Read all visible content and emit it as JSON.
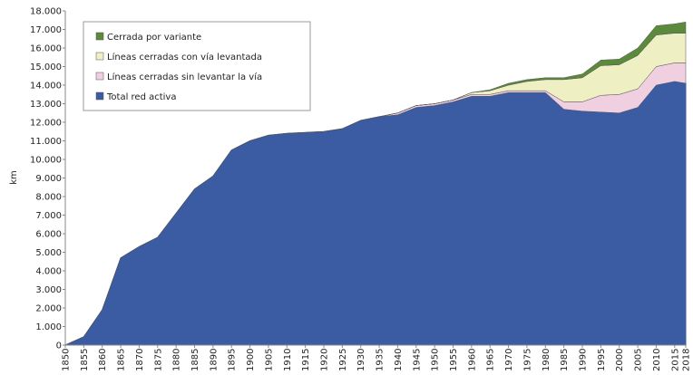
{
  "chart_data": {
    "type": "stacked_area",
    "y_label": "km",
    "x": [
      1850,
      1855,
      1860,
      1865,
      1870,
      1875,
      1880,
      1885,
      1890,
      1895,
      1900,
      1905,
      1910,
      1915,
      1920,
      1925,
      1930,
      1935,
      1940,
      1945,
      1950,
      1955,
      1960,
      1965,
      1970,
      1975,
      1980,
      1985,
      1990,
      1995,
      2000,
      2005,
      2010,
      2015,
      2018
    ],
    "xlim": [
      1850,
      2018
    ],
    "xticks": [
      1850,
      1855,
      1860,
      1865,
      1870,
      1875,
      1880,
      1885,
      1890,
      1895,
      1900,
      1905,
      1910,
      1915,
      1920,
      1925,
      1930,
      1935,
      1940,
      1945,
      1950,
      1955,
      1960,
      1965,
      1970,
      1975,
      1980,
      1985,
      1990,
      1995,
      2000,
      2005,
      2010,
      2015,
      2018
    ],
    "ylim": [
      0,
      18000
    ],
    "yticks": [
      0,
      {
        "value": 1000,
        "label": "1.000"
      },
      {
        "value": 2000,
        "label": "2.000"
      },
      {
        "value": 3000,
        "label": "3.000"
      },
      {
        "value": 4000,
        "label": "4.000"
      },
      {
        "value": 5000,
        "label": "5.000"
      },
      {
        "value": 6000,
        "label": "6.000"
      },
      {
        "value": 7000,
        "label": "7.000"
      },
      {
        "value": 8000,
        "label": "8.000"
      },
      {
        "value": 9000,
        "label": "9.000"
      },
      {
        "value": 10000,
        "label": "10.000"
      },
      {
        "value": 11000,
        "label": "11.000"
      },
      {
        "value": 12000,
        "label": "12.000"
      },
      {
        "value": 13000,
        "label": "13.000"
      },
      {
        "value": 14000,
        "label": "14.000"
      },
      {
        "value": 15000,
        "label": "15.000"
      },
      {
        "value": 16000,
        "label": "16.000"
      },
      {
        "value": 17000,
        "label": "17.000"
      },
      {
        "value": 18000,
        "label": "18.000"
      }
    ],
    "legend": "upper left",
    "series": [
      {
        "name": "Total red activa",
        "color": "#3b5ca3",
        "values": [
          0,
          450,
          1900,
          4700,
          5300,
          5800,
          7100,
          8400,
          9100,
          10500,
          11000,
          11300,
          11400,
          11450,
          11500,
          11650,
          12100,
          12300,
          12400,
          12800,
          12900,
          13100,
          13400,
          13400,
          13600,
          13600,
          13600,
          12700,
          12600,
          12550,
          12500,
          12800,
          14000,
          14200,
          14100
        ]
      },
      {
        "name": "Líneas cerradas sin levantar la vía",
        "color": "#f0cfe0",
        "values": [
          0,
          0,
          0,
          0,
          0,
          0,
          0,
          0,
          0,
          0,
          0,
          0,
          0,
          0,
          0,
          0,
          0,
          0,
          100,
          100,
          100,
          100,
          100,
          100,
          100,
          100,
          100,
          400,
          500,
          900,
          1000,
          1000,
          1000,
          1000,
          1100
        ]
      },
      {
        "name": "Líneas cerradas con vía levantada",
        "color": "#eef0c4",
        "values": [
          0,
          0,
          0,
          0,
          0,
          0,
          0,
          0,
          0,
          0,
          0,
          0,
          0,
          0,
          0,
          0,
          0,
          0,
          0,
          0,
          0,
          0,
          100,
          200,
          300,
          500,
          600,
          1200,
          1300,
          1600,
          1600,
          1800,
          1700,
          1600,
          1600
        ]
      },
      {
        "name": "Cerrada por variante",
        "color": "#5b8a3c",
        "values": [
          0,
          0,
          0,
          0,
          0,
          0,
          0,
          0,
          0,
          0,
          0,
          0,
          0,
          0,
          0,
          0,
          0,
          0,
          0,
          0,
          0,
          0,
          0,
          50,
          100,
          100,
          100,
          100,
          200,
          300,
          300,
          400,
          500,
          500,
          600
        ]
      }
    ]
  }
}
